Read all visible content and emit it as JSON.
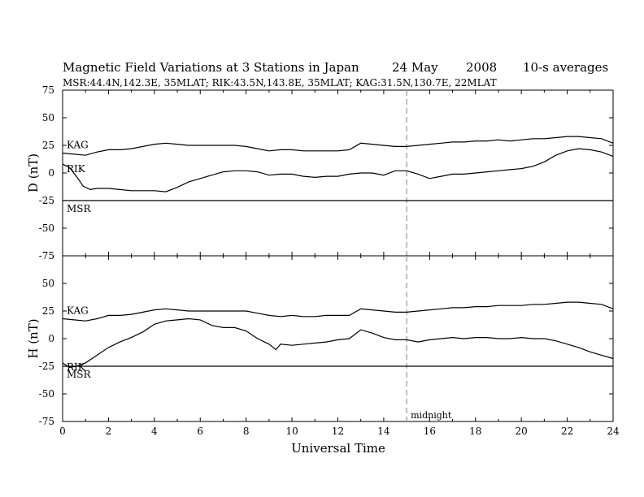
{
  "title": {
    "main": "Magnetic Field Variations at 3 Stations in Japan",
    "date": "24  May",
    "year": "2008",
    "averaging": "10-s averages"
  },
  "subtitle": "MSR:44.4N,142.3E, 35MLAT;  RIK:43.5N,143.8E, 35MLAT;  KAG:31.5N,130.7E, 22MLAT",
  "x_axis_label": "Universal Time",
  "midnight_label": "midnight",
  "colors": {
    "trace": "#000000",
    "midnight_line": "#aaaaaa",
    "background": "#ffffff"
  },
  "chart_data": [
    {
      "type": "line",
      "panel": "D",
      "ylabel": "D (nT)",
      "xlim": [
        0,
        24
      ],
      "ylim": [
        -75,
        75
      ],
      "x_ticks": [
        0,
        2,
        4,
        6,
        8,
        10,
        12,
        14,
        16,
        18,
        20,
        22,
        24
      ],
      "y_ticks": [
        75,
        50,
        25,
        0,
        -25,
        -50,
        -75
      ],
      "y_tick_labels": [
        "75",
        "50",
        "25",
        "0",
        "-25",
        "-50",
        "-75"
      ],
      "annotation": {
        "x": 15,
        "text": "midnight",
        "style": "dashed vertical line"
      },
      "series": [
        {
          "name": "KAG",
          "x": [
            0,
            0.5,
            1,
            1.5,
            2,
            2.5,
            3,
            3.5,
            4,
            4.5,
            5,
            5.5,
            6,
            6.5,
            7,
            7.5,
            8,
            8.5,
            9,
            9.5,
            10,
            10.5,
            11,
            11.5,
            12,
            12.5,
            13,
            13.5,
            14,
            14.5,
            15,
            15.5,
            16,
            16.5,
            17,
            17.5,
            18,
            18.5,
            19,
            19.5,
            20,
            20.5,
            21,
            21.5,
            22,
            22.5,
            23,
            23.5,
            24
          ],
          "y": [
            18,
            17,
            16,
            19,
            21,
            21,
            22,
            24,
            26,
            27,
            26,
            25,
            25,
            25,
            25,
            25,
            24,
            22,
            20,
            21,
            21,
            20,
            20,
            20,
            20,
            21,
            27,
            26,
            25,
            24,
            24,
            25,
            26,
            27,
            28,
            28,
            29,
            29,
            30,
            29,
            30,
            31,
            31,
            32,
            33,
            33,
            32,
            31,
            27
          ]
        },
        {
          "name": "RIK",
          "x": [
            0,
            0.3,
            0.6,
            0.9,
            1.2,
            1.5,
            2,
            2.5,
            3,
            3.5,
            4,
            4.5,
            5,
            5.5,
            6,
            6.5,
            7,
            7.5,
            8,
            8.5,
            9,
            9.5,
            10,
            10.5,
            11,
            11.5,
            12,
            12.5,
            13,
            13.5,
            14,
            14.5,
            15,
            15.5,
            16,
            16.5,
            17,
            17.5,
            18,
            18.5,
            19,
            19.5,
            20,
            20.5,
            21,
            21.5,
            22,
            22.5,
            23,
            23.5,
            24
          ],
          "y": [
            8,
            5,
            -3,
            -12,
            -15,
            -14,
            -14,
            -15,
            -16,
            -16,
            -16,
            -17,
            -13,
            -8,
            -5,
            -2,
            1,
            2,
            2,
            1,
            -2,
            -1,
            -1,
            -3,
            -4,
            -3,
            -3,
            -1,
            0,
            0,
            -2,
            2,
            2,
            -1,
            -5,
            -3,
            -1,
            -1,
            0,
            1,
            2,
            3,
            4,
            6,
            10,
            16,
            20,
            22,
            21,
            19,
            15
          ]
        },
        {
          "name": "MSR",
          "x": [
            0,
            24
          ],
          "y": [
            -25,
            -25
          ]
        }
      ]
    },
    {
      "type": "line",
      "panel": "H",
      "ylabel": "H (nT)",
      "xlim": [
        0,
        24
      ],
      "ylim": [
        -75,
        75
      ],
      "x_ticks": [
        0,
        2,
        4,
        6,
        8,
        10,
        12,
        14,
        16,
        18,
        20,
        22,
        24
      ],
      "x_tick_labels": [
        "0",
        "2",
        "4",
        "6",
        "8",
        "10",
        "12",
        "14",
        "16",
        "18",
        "20",
        "22",
        "24"
      ],
      "y_ticks": [
        75,
        50,
        25,
        0,
        -25,
        -50,
        -75
      ],
      "y_tick_labels": [
        "",
        "50",
        "25",
        "0",
        "-25",
        "-50",
        "-75"
      ],
      "annotation": {
        "x": 15,
        "text": "midnight",
        "style": "dashed vertical line"
      },
      "series": [
        {
          "name": "KAG",
          "x": [
            0,
            0.5,
            1,
            1.5,
            2,
            2.5,
            3,
            3.5,
            4,
            4.5,
            5,
            5.5,
            6,
            6.5,
            7,
            7.5,
            8,
            8.5,
            9,
            9.5,
            10,
            10.5,
            11,
            11.5,
            12,
            12.5,
            13,
            13.5,
            14,
            14.5,
            15,
            15.5,
            16,
            16.5,
            17,
            17.5,
            18,
            18.5,
            19,
            19.5,
            20,
            20.5,
            21,
            21.5,
            22,
            22.5,
            23,
            23.5,
            24
          ],
          "y": [
            18,
            17,
            16,
            18,
            21,
            21,
            22,
            24,
            26,
            27,
            26,
            25,
            25,
            25,
            25,
            25,
            25,
            23,
            21,
            20,
            21,
            20,
            20,
            21,
            21,
            21,
            27,
            26,
            25,
            24,
            24,
            25,
            26,
            27,
            28,
            28,
            29,
            29,
            30,
            30,
            30,
            31,
            31,
            32,
            33,
            33,
            32,
            31,
            27
          ]
        },
        {
          "name": "RIK",
          "x": [
            0,
            0.3,
            0.6,
            1,
            1.5,
            2,
            2.5,
            3,
            3.5,
            4,
            4.5,
            5,
            5.5,
            6,
            6.5,
            7,
            7.5,
            8,
            8.5,
            9,
            9.3,
            9.5,
            10,
            10.5,
            11,
            11.5,
            12,
            12.5,
            13,
            13.5,
            14,
            14.5,
            15,
            15.5,
            16,
            16.5,
            17,
            17.5,
            18,
            18.5,
            19,
            19.5,
            20,
            20.5,
            21,
            21.5,
            22,
            22.5,
            23,
            23.5,
            24
          ],
          "y": [
            -22,
            -26,
            -25,
            -22,
            -15,
            -8,
            -3,
            1,
            6,
            13,
            16,
            17,
            18,
            17,
            12,
            10,
            10,
            7,
            0,
            -5,
            -10,
            -5,
            -6,
            -5,
            -4,
            -3,
            -1,
            0,
            8,
            5,
            1,
            -1,
            -1,
            -3,
            -1,
            0,
            1,
            0,
            1,
            1,
            0,
            0,
            1,
            0,
            0,
            -2,
            -5,
            -8,
            -12,
            -15,
            -18
          ]
        },
        {
          "name": "MSR",
          "x": [
            0,
            24
          ],
          "y": [
            -25,
            -25
          ]
        }
      ]
    }
  ]
}
